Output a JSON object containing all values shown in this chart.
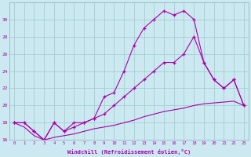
{
  "xlabel": "Windchill (Refroidissement éolien,°C)",
  "background_color": "#cce8f0",
  "line_color": "#aa00aa",
  "grid_color": "#99cccc",
  "x_values": [
    0,
    1,
    2,
    3,
    4,
    5,
    6,
    7,
    8,
    9,
    10,
    11,
    12,
    13,
    14,
    15,
    16,
    17,
    18,
    19,
    20,
    21,
    22,
    23
  ],
  "series1": [
    18,
    18,
    17,
    16,
    18,
    17,
    17.5,
    18,
    18.5,
    21,
    21.5,
    24,
    27,
    29,
    30,
    31,
    30.5,
    31,
    30,
    25,
    23,
    22,
    23,
    20
  ],
  "series2": [
    18,
    18,
    17,
    16,
    18,
    17,
    18,
    18,
    18.5,
    19,
    20,
    21,
    22,
    23,
    24,
    25,
    25,
    26,
    28,
    25,
    23,
    22,
    23,
    20
  ],
  "series3": [
    18,
    17.5,
    16.5,
    16,
    16.3,
    16.5,
    16.7,
    17,
    17.3,
    17.5,
    17.7,
    18,
    18.3,
    18.7,
    19,
    19.3,
    19.5,
    19.7,
    20,
    20.2,
    20.3,
    20.4,
    20.5,
    20
  ],
  "ylim": [
    16,
    32
  ],
  "xlim": [
    -0.5,
    23.5
  ],
  "yticks": [
    16,
    18,
    20,
    22,
    24,
    26,
    28,
    30
  ],
  "xticks": [
    0,
    1,
    2,
    3,
    4,
    5,
    6,
    7,
    8,
    9,
    10,
    11,
    12,
    13,
    14,
    15,
    16,
    17,
    18,
    19,
    20,
    21,
    22,
    23
  ]
}
